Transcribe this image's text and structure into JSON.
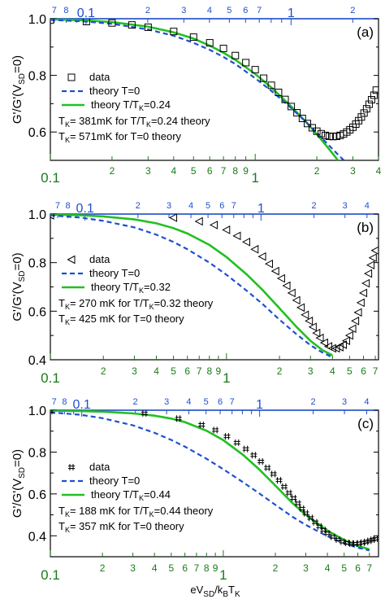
{
  "figure": {
    "xlabel_main": "eV",
    "xlabel_sub1": "SD",
    "xlabel_mid": "/k",
    "xlabel_sub2": "B",
    "xlabel_end": "T",
    "xlabel_sub3": "K",
    "colors": {
      "data": "#000000",
      "theory_t0": "#1f4fd1",
      "theory_tk": "#22c022",
      "bottom_axis": "#1a7a1a",
      "top_axis": "#1f4fd1"
    }
  },
  "chart_data": [
    {
      "type": "scatter",
      "panel_label": "(a)",
      "ylabel": "G'/G'(V_SD=0)",
      "ylabel_parts": {
        "main": "G'/G'(V",
        "sub": "SD",
        "end": "=0)"
      },
      "xscale": "log",
      "xlim": [
        0.1,
        4
      ],
      "ylim": [
        0.5,
        1.0
      ],
      "yticks": [
        0.6,
        0.8,
        1.0
      ],
      "ytick_labels": [
        "0.6",
        "0.8",
        "1.0"
      ],
      "top_xlim": [
        0.067,
        2.67
      ],
      "marker": "square",
      "legend": {
        "data": "data",
        "t0": "theory T=0",
        "tk_main": "theory T/T",
        "tk_sub": "K",
        "tk_end": "=0.24"
      },
      "notes": [
        {
          "a": "T",
          "sub": "K",
          "b": "= 381mK for T/T",
          "sub2": "K",
          "c": "=0.24 theory"
        },
        {
          "a": "T",
          "sub": "K",
          "b": "= 571mK for T=0 theory",
          "sub2": "",
          "c": ""
        }
      ],
      "series": [
        {
          "name": "data",
          "x": [
            0.1,
            0.15,
            0.2,
            0.25,
            0.3,
            0.4,
            0.5,
            0.6,
            0.7,
            0.8,
            0.9,
            1.0,
            1.1,
            1.2,
            1.3,
            1.4,
            1.5,
            1.6,
            1.7,
            1.8,
            1.9,
            2.0,
            2.1,
            2.2,
            2.3,
            2.4,
            2.5,
            2.6,
            2.7,
            2.8,
            2.9,
            3.0,
            3.1,
            3.2,
            3.3,
            3.4,
            3.5,
            3.6,
            3.7,
            3.8,
            3.9
          ],
          "y": [
            0.995,
            0.99,
            0.985,
            0.978,
            0.97,
            0.955,
            0.935,
            0.915,
            0.895,
            0.87,
            0.845,
            0.82,
            0.79,
            0.765,
            0.74,
            0.715,
            0.69,
            0.668,
            0.648,
            0.63,
            0.615,
            0.603,
            0.594,
            0.588,
            0.585,
            0.584,
            0.585,
            0.588,
            0.593,
            0.6,
            0.608,
            0.617,
            0.628,
            0.64,
            0.653,
            0.667,
            0.682,
            0.698,
            0.714,
            0.73,
            0.748
          ]
        },
        {
          "name": "theory T=0",
          "x": [
            0.1,
            0.15,
            0.2,
            0.3,
            0.4,
            0.5,
            0.6,
            0.7,
            0.8,
            1.0,
            1.2,
            1.5,
            1.8,
            2.0,
            2.2,
            2.5,
            2.8,
            3.0
          ],
          "y": [
            0.996,
            0.99,
            0.982,
            0.962,
            0.94,
            0.915,
            0.89,
            0.865,
            0.84,
            0.79,
            0.745,
            0.685,
            0.63,
            0.597,
            0.566,
            0.525,
            0.49,
            0.47
          ]
        },
        {
          "name": "theory T/TK=0.24",
          "x": [
            0.1,
            0.15,
            0.2,
            0.3,
            0.4,
            0.5,
            0.6,
            0.7,
            0.8,
            1.0,
            1.2,
            1.5,
            1.8,
            2.0,
            2.2,
            2.4,
            2.6
          ],
          "y": [
            0.998,
            0.994,
            0.988,
            0.972,
            0.952,
            0.93,
            0.905,
            0.88,
            0.855,
            0.805,
            0.757,
            0.69,
            0.63,
            0.592,
            0.556,
            0.522,
            0.49
          ]
        }
      ]
    },
    {
      "type": "scatter",
      "panel_label": "(b)",
      "ylabel": "G'/G'(V_SD=0)",
      "ylabel_parts": {
        "main": "G'/G'(V",
        "sub": "SD",
        "end": "=0)"
      },
      "xscale": "log",
      "xlim": [
        0.1,
        7.3
      ],
      "ylim": [
        0.4,
        1.0
      ],
      "yticks": [
        0.4,
        0.6,
        0.8,
        1.0
      ],
      "ytick_labels": [
        "0.4",
        "0.6",
        "0.8",
        "1.0"
      ],
      "top_xlim": [
        0.0636,
        4.65
      ],
      "marker": "triangle-left",
      "legend": {
        "data": "data",
        "t0": "theory T=0",
        "tk_main": "theory T/T",
        "tk_sub": "K",
        "tk_end": "=0.32"
      },
      "notes": [
        {
          "a": "T",
          "sub": "K",
          "b": "= 270 mK for T/T",
          "sub2": "K",
          "c": "=0.32 theory"
        },
        {
          "a": "T",
          "sub": "K",
          "b": "= 425 mK for T=0 theory",
          "sub2": "",
          "c": ""
        }
      ],
      "series": [
        {
          "name": "data",
          "x": [
            0.1,
            0.5,
            0.7,
            0.85,
            1.0,
            1.15,
            1.3,
            1.45,
            1.6,
            1.75,
            1.9,
            2.05,
            2.2,
            2.35,
            2.5,
            2.65,
            2.8,
            2.95,
            3.1,
            3.25,
            3.4,
            3.6,
            3.8,
            4.0,
            4.2,
            4.4,
            4.6,
            4.8,
            5.0,
            5.2,
            5.4,
            5.6,
            5.8,
            6.0,
            6.2,
            6.4,
            6.6,
            6.8,
            7.0
          ],
          "y": [
            0.995,
            0.985,
            0.97,
            0.955,
            0.935,
            0.91,
            0.885,
            0.855,
            0.825,
            0.795,
            0.765,
            0.735,
            0.705,
            0.675,
            0.645,
            0.615,
            0.585,
            0.56,
            0.535,
            0.51,
            0.49,
            0.47,
            0.455,
            0.447,
            0.447,
            0.452,
            0.462,
            0.478,
            0.5,
            0.528,
            0.56,
            0.595,
            0.635,
            0.675,
            0.715,
            0.755,
            0.79,
            0.82,
            0.85
          ]
        },
        {
          "name": "theory T=0",
          "x": [
            0.1,
            0.15,
            0.2,
            0.3,
            0.4,
            0.5,
            0.6,
            0.8,
            1.0,
            1.3,
            1.6,
            2.0,
            2.5,
            3.0,
            3.5,
            4.0
          ],
          "y": [
            0.995,
            0.985,
            0.972,
            0.945,
            0.915,
            0.885,
            0.855,
            0.8,
            0.75,
            0.685,
            0.63,
            0.565,
            0.505,
            0.46,
            0.43,
            0.41
          ]
        },
        {
          "name": "theory T/TK=0.32",
          "x": [
            0.1,
            0.15,
            0.2,
            0.3,
            0.4,
            0.5,
            0.6,
            0.8,
            1.0,
            1.3,
            1.6,
            2.0,
            2.5,
            3.0,
            3.5,
            4.0
          ],
          "y": [
            0.998,
            0.995,
            0.99,
            0.978,
            0.962,
            0.942,
            0.92,
            0.873,
            0.823,
            0.752,
            0.688,
            0.612,
            0.535,
            0.478,
            0.44,
            0.418
          ]
        }
      ]
    },
    {
      "type": "scatter",
      "panel_label": "(c)",
      "ylabel": "G'/G'(V_SD=0)",
      "ylabel_parts": {
        "main": "G'/G'(V",
        "sub": "SD",
        "end": "=0)"
      },
      "xscale": "log",
      "xlim": [
        0.1,
        7.9
      ],
      "ylim": [
        0.3,
        1.0
      ],
      "yticks": [
        0.4,
        0.6,
        0.8,
        1.0
      ],
      "ytick_labels": [
        "0.4",
        "0.6",
        "0.8",
        "1.0"
      ],
      "top_xlim": [
        0.0666,
        4.66
      ],
      "marker": "hash",
      "legend": {
        "data": "data",
        "t0": "theory T=0",
        "tk_main": "theory T/T",
        "tk_sub": "K",
        "tk_end": "=0.44"
      },
      "notes": [
        {
          "a": "T",
          "sub": "K",
          "b": "= 188 mK for  T/T",
          "sub2": "K",
          "c": "=0.44 theory"
        },
        {
          "a": "T",
          "sub": "K",
          "b": "= 357 mK for  T=0 theory",
          "sub2": "",
          "c": ""
        }
      ],
      "series": [
        {
          "name": "data",
          "x": [
            0.1,
            0.35,
            0.55,
            0.75,
            0.9,
            1.05,
            1.2,
            1.35,
            1.5,
            1.65,
            1.8,
            1.95,
            2.1,
            2.25,
            2.4,
            2.55,
            2.7,
            2.85,
            3.0,
            3.2,
            3.4,
            3.6,
            3.8,
            4.0,
            4.3,
            4.6,
            4.9,
            5.2,
            5.5,
            5.8,
            6.1,
            6.4,
            6.7,
            7.0,
            7.3,
            7.6
          ],
          "y": [
            0.995,
            0.985,
            0.96,
            0.93,
            0.905,
            0.875,
            0.845,
            0.815,
            0.785,
            0.755,
            0.725,
            0.695,
            0.665,
            0.635,
            0.605,
            0.58,
            0.555,
            0.53,
            0.508,
            0.485,
            0.465,
            0.445,
            0.428,
            0.412,
            0.395,
            0.382,
            0.372,
            0.366,
            0.363,
            0.362,
            0.364,
            0.367,
            0.371,
            0.376,
            0.381,
            0.386
          ]
        },
        {
          "name": "theory T=0",
          "x": [
            0.1,
            0.15,
            0.2,
            0.3,
            0.4,
            0.5,
            0.6,
            0.8,
            1.0,
            1.3,
            1.6,
            2.0,
            2.5,
            3.0,
            4.0,
            5.0,
            6.0,
            7.0
          ],
          "y": [
            0.99,
            0.978,
            0.962,
            0.928,
            0.892,
            0.858,
            0.826,
            0.768,
            0.718,
            0.656,
            0.605,
            0.548,
            0.492,
            0.452,
            0.398,
            0.364,
            0.343,
            0.33
          ]
        },
        {
          "name": "theory T/TK=0.44",
          "x": [
            0.1,
            0.15,
            0.2,
            0.3,
            0.4,
            0.5,
            0.6,
            0.8,
            1.0,
            1.3,
            1.6,
            2.0,
            2.5,
            3.0,
            4.0,
            5.0,
            6.0,
            7.0
          ],
          "y": [
            0.998,
            0.996,
            0.993,
            0.985,
            0.974,
            0.96,
            0.943,
            0.902,
            0.857,
            0.787,
            0.72,
            0.64,
            0.558,
            0.5,
            0.425,
            0.38,
            0.352,
            0.335
          ]
        }
      ]
    }
  ]
}
